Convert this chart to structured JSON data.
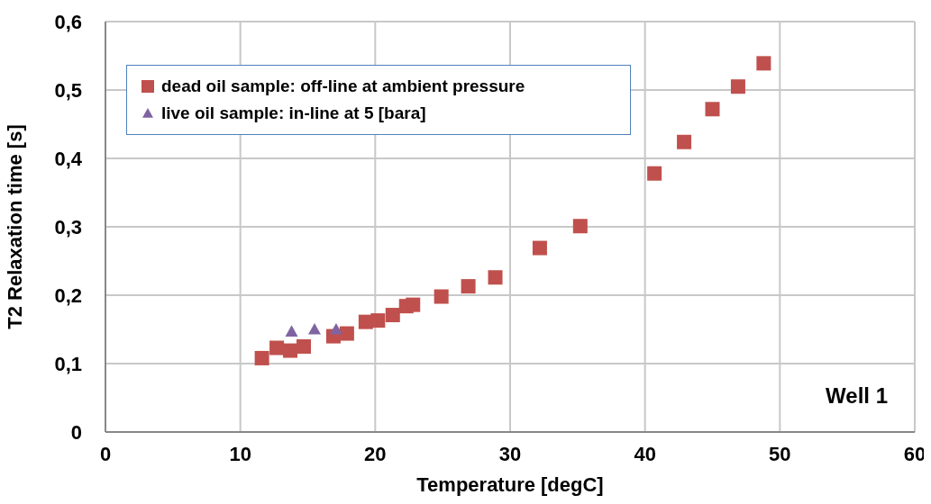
{
  "chart_data": {
    "type": "scatter",
    "xlabel": "Temperature [degC]",
    "ylabel": "T2 Relaxation time [s]",
    "annotations": [
      "Well 1"
    ],
    "xlim": [
      0,
      60
    ],
    "xticks": [
      0,
      10,
      20,
      30,
      40,
      50,
      60
    ],
    "ylim": [
      0,
      0.6
    ],
    "yticks": [
      {
        "value": 0,
        "label": "0"
      },
      {
        "value": 0.1,
        "label": "0,1"
      },
      {
        "value": 0.2,
        "label": "0,2"
      },
      {
        "value": 0.3,
        "label": "0,3"
      },
      {
        "value": 0.4,
        "label": "0,4"
      },
      {
        "value": 0.5,
        "label": "0,5"
      },
      {
        "value": 0.6,
        "label": "0,6"
      }
    ],
    "grid": true,
    "legend": "top left",
    "series": [
      {
        "name": "dead oil sample: off-line at ambient pressure",
        "color": "#c0504d",
        "marker": "square",
        "x": [
          11.6,
          12.7,
          13.7,
          14.7,
          16.9,
          17.9,
          19.3,
          20.2,
          21.3,
          22.3,
          22.8,
          24.9,
          26.9,
          28.9,
          32.2,
          35.2,
          40.7,
          42.9,
          45.0,
          46.9,
          48.8
        ],
        "values": [
          0.108,
          0.123,
          0.119,
          0.125,
          0.14,
          0.144,
          0.161,
          0.163,
          0.171,
          0.184,
          0.186,
          0.198,
          0.213,
          0.226,
          0.269,
          0.301,
          0.378,
          0.424,
          0.472,
          0.505,
          0.539
        ]
      },
      {
        "name": "live oil sample: in-line at 5 [bara]",
        "color": "#8064a2",
        "marker": "triangle",
        "x": [
          13.8,
          15.5,
          17.1
        ],
        "values": [
          0.147,
          0.15,
          0.15
        ]
      }
    ]
  }
}
